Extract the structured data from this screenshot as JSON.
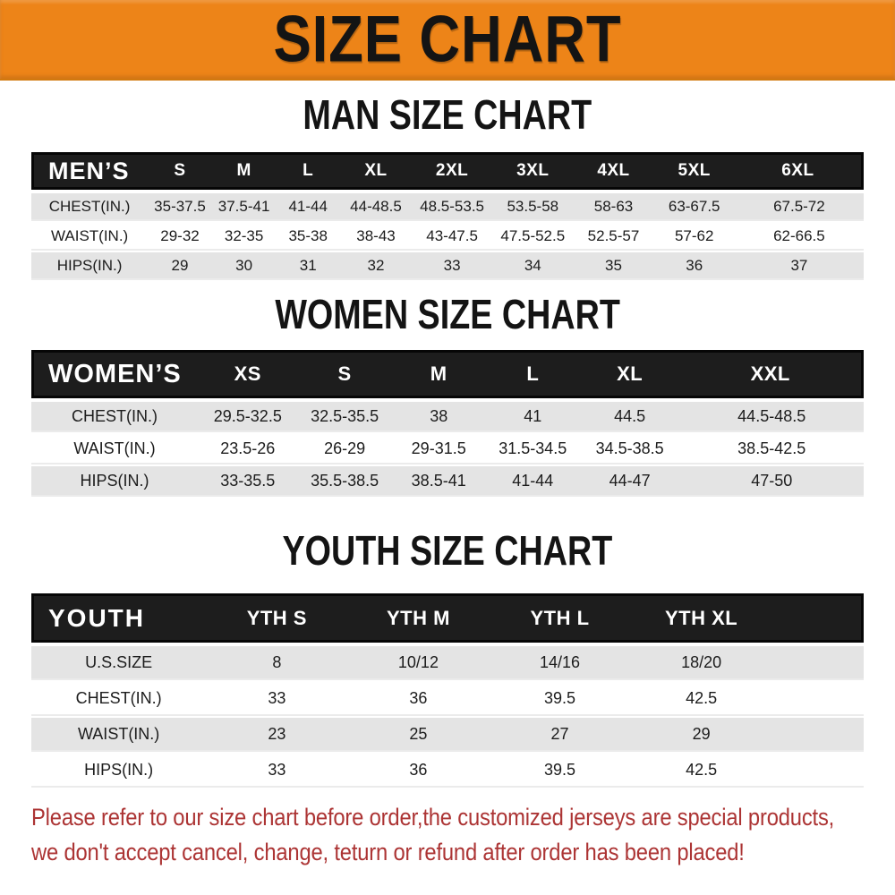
{
  "banner": {
    "title": "SIZE CHART"
  },
  "sections": [
    {
      "title": "MAN SIZE CHART",
      "table": {
        "header_label": "MEN’S",
        "columns": [
          "S",
          "M",
          "L",
          "XL",
          "2XL",
          "3XL",
          "4XL",
          "5XL",
          "6XL"
        ],
        "rows": [
          {
            "label": "CHEST(IN.)",
            "values": [
              "35-37.5",
              "37.5-41",
              "41-44",
              "44-48.5",
              "48.5-53.5",
              "53.5-58",
              "58-63",
              "63-67.5",
              "67.5-72"
            ]
          },
          {
            "label": "WAIST(IN.)",
            "values": [
              "29-32",
              "32-35",
              "35-38",
              "38-43",
              "43-47.5",
              "47.5-52.5",
              "52.5-57",
              "57-62",
              "62-66.5"
            ]
          },
          {
            "label": "HIPS(IN.)",
            "values": [
              "29",
              "30",
              "31",
              "32",
              "33",
              "34",
              "35",
              "36",
              "37"
            ]
          }
        ]
      }
    },
    {
      "title": "WOMEN SIZE CHART",
      "table": {
        "header_label": "WOMEN’S",
        "columns": [
          "XS",
          "S",
          "M",
          "L",
          "XL",
          "XXL"
        ],
        "rows": [
          {
            "label": "CHEST(IN.)",
            "values": [
              "29.5-32.5",
              "32.5-35.5",
              "38",
              "41",
              "44.5",
              "44.5-48.5"
            ]
          },
          {
            "label": "WAIST(IN.)",
            "values": [
              "23.5-26",
              "26-29",
              "29-31.5",
              "31.5-34.5",
              "34.5-38.5",
              "38.5-42.5"
            ]
          },
          {
            "label": "HIPS(IN.)",
            "values": [
              "33-35.5",
              "35.5-38.5",
              "38.5-41",
              "41-44",
              "44-47",
              "47-50"
            ]
          }
        ]
      }
    },
    {
      "title": "YOUTH SIZE CHART",
      "table": {
        "header_label": "YOUTH",
        "columns": [
          "YTH S",
          "YTH M",
          "YTH L",
          "YTH XL"
        ],
        "rows": [
          {
            "label": "U.S.SIZE",
            "values": [
              "8",
              "10/12",
              "14/16",
              "18/20"
            ]
          },
          {
            "label": "CHEST(IN.)",
            "values": [
              "33",
              "36",
              "39.5",
              "42.5"
            ]
          },
          {
            "label": "WAIST(IN.)",
            "values": [
              "23",
              "25",
              "27",
              "29"
            ]
          },
          {
            "label": "HIPS(IN.)",
            "values": [
              "33",
              "36",
              "39.5",
              "42.5"
            ]
          }
        ]
      }
    }
  ],
  "footer": {
    "line1": "Please refer to our size chart before order,the customized jerseys are special products,",
    "line2": "we don't accept cancel, change, teturn or refund after order has been placed!"
  },
  "colors": {
    "banner_orange": "#ED8418",
    "bar_black": "#1D1D1D",
    "row_gray": "#E4E4E4",
    "title_black": "#141414",
    "cell_text": "#1C1C1C",
    "footer_red": "#AC3434"
  }
}
